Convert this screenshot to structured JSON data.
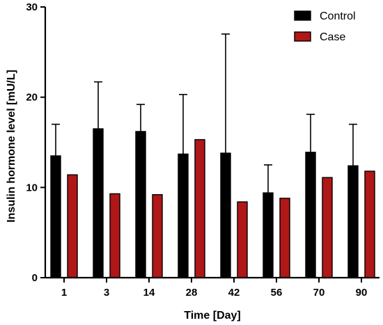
{
  "chart_data": {
    "type": "bar",
    "title": "",
    "xlabel": "Time [Day]",
    "ylabel": "Insulin hormone level [mU/L]",
    "ylim": [
      0,
      30
    ],
    "yticks": [
      0,
      10,
      20,
      30
    ],
    "grid": false,
    "legend_position": "top-right",
    "categories": [
      "1",
      "3",
      "14",
      "28",
      "42",
      "56",
      "70",
      "90"
    ],
    "series": [
      {
        "name": "Control",
        "color": "#000000",
        "values": [
          13.5,
          16.5,
          16.2,
          13.7,
          13.8,
          9.4,
          13.9,
          12.4
        ],
        "error_upper": [
          17.0,
          21.7,
          19.2,
          20.3,
          27.0,
          12.5,
          18.1,
          17.0
        ]
      },
      {
        "name": "Case",
        "color": "#b01717",
        "values": [
          11.4,
          9.3,
          9.2,
          15.3,
          8.4,
          8.8,
          11.1,
          11.8
        ],
        "error_upper": null
      }
    ]
  }
}
